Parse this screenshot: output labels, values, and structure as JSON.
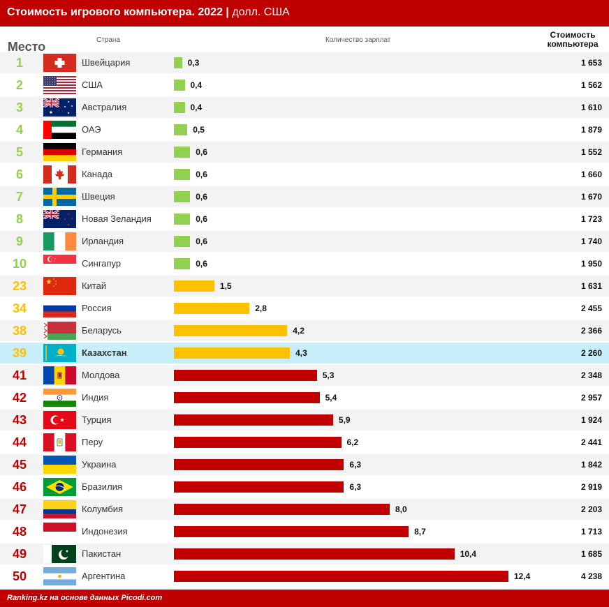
{
  "header": {
    "title": "Стоимость игрового компьютера. 2022",
    "separator": "|",
    "unit": "долл. США"
  },
  "columns": {
    "rank": "Место",
    "country": "Страна",
    "salaries": "Количество зарплат",
    "cost": "Стоимость компьютера"
  },
  "colors": {
    "red": "#c00000",
    "green": "#92d050",
    "yellow": "#ffc000",
    "highlight": "#c8eefa",
    "zebra": "#f3f3f3"
  },
  "chart_data": {
    "type": "bar",
    "orientation": "horizontal",
    "xlim": [
      0,
      12.4
    ],
    "rows": [
      {
        "rank": "1",
        "country": "Швейцария",
        "flag": "flag-switzerland",
        "value": 0.3,
        "value_label": "0,3",
        "cost": "1 653",
        "tier": "green"
      },
      {
        "rank": "2",
        "country": "США",
        "flag": "flag-usa",
        "value": 0.4,
        "value_label": "0,4",
        "cost": "1 562",
        "tier": "green"
      },
      {
        "rank": "3",
        "country": "Австралия",
        "flag": "flag-australia",
        "value": 0.4,
        "value_label": "0,4",
        "cost": "1 610",
        "tier": "green"
      },
      {
        "rank": "4",
        "country": "ОАЭ",
        "flag": "flag-uae",
        "value": 0.5,
        "value_label": "0,5",
        "cost": "1 879",
        "tier": "green"
      },
      {
        "rank": "5",
        "country": "Германия",
        "flag": "flag-germany",
        "value": 0.6,
        "value_label": "0,6",
        "cost": "1 552",
        "tier": "green"
      },
      {
        "rank": "6",
        "country": "Канада",
        "flag": "flag-canada",
        "value": 0.6,
        "value_label": "0,6",
        "cost": "1 660",
        "tier": "green"
      },
      {
        "rank": "7",
        "country": "Швеция",
        "flag": "flag-sweden",
        "value": 0.6,
        "value_label": "0,6",
        "cost": "1 670",
        "tier": "green"
      },
      {
        "rank": "8",
        "country": "Новая Зеландия",
        "flag": "flag-new-zealand",
        "value": 0.6,
        "value_label": "0,6",
        "cost": "1 723",
        "tier": "green"
      },
      {
        "rank": "9",
        "country": "Ирландия",
        "flag": "flag-ireland",
        "value": 0.6,
        "value_label": "0,6",
        "cost": "1 740",
        "tier": "green"
      },
      {
        "rank": "10",
        "country": "Сингапур",
        "flag": "flag-singapore",
        "value": 0.6,
        "value_label": "0,6",
        "cost": "1 950",
        "tier": "green"
      },
      {
        "rank": "23",
        "country": "Китай",
        "flag": "flag-china",
        "value": 1.5,
        "value_label": "1,5",
        "cost": "1 631",
        "tier": "yellow"
      },
      {
        "rank": "34",
        "country": "Россия",
        "flag": "flag-russia",
        "value": 2.8,
        "value_label": "2,8",
        "cost": "2 455",
        "tier": "yellow"
      },
      {
        "rank": "38",
        "country": "Беларусь",
        "flag": "flag-belarus",
        "value": 4.2,
        "value_label": "4,2",
        "cost": "2 366",
        "tier": "yellow"
      },
      {
        "rank": "39",
        "country": "Казахстан",
        "flag": "flag-kazakhstan",
        "value": 4.3,
        "value_label": "4,3",
        "cost": "2 260",
        "tier": "yellow",
        "highlight": true
      },
      {
        "rank": "41",
        "country": "Молдова",
        "flag": "flag-moldova",
        "value": 5.3,
        "value_label": "5,3",
        "cost": "2 348",
        "tier": "red"
      },
      {
        "rank": "42",
        "country": "Индия",
        "flag": "flag-india",
        "value": 5.4,
        "value_label": "5,4",
        "cost": "2 957",
        "tier": "red"
      },
      {
        "rank": "43",
        "country": "Турция",
        "flag": "flag-turkey",
        "value": 5.9,
        "value_label": "5,9",
        "cost": "1 924",
        "tier": "red"
      },
      {
        "rank": "44",
        "country": "Перу",
        "flag": "flag-peru",
        "value": 6.2,
        "value_label": "6,2",
        "cost": "2 441",
        "tier": "red"
      },
      {
        "rank": "45",
        "country": "Украина",
        "flag": "flag-ukraine",
        "value": 6.3,
        "value_label": "6,3",
        "cost": "1 842",
        "tier": "red"
      },
      {
        "rank": "46",
        "country": "Бразилия",
        "flag": "flag-brazil",
        "value": 6.3,
        "value_label": "6,3",
        "cost": "2 919",
        "tier": "red"
      },
      {
        "rank": "47",
        "country": "Колумбия",
        "flag": "flag-colombia",
        "value": 8.0,
        "value_label": "8,0",
        "cost": "2 203",
        "tier": "red"
      },
      {
        "rank": "48",
        "country": "Индонезия",
        "flag": "flag-indonesia",
        "value": 8.7,
        "value_label": "8,7",
        "cost": "1 713",
        "tier": "red"
      },
      {
        "rank": "49",
        "country": "Пакистан",
        "flag": "flag-pakistan",
        "value": 10.4,
        "value_label": "10,4",
        "cost": "1 685",
        "tier": "red"
      },
      {
        "rank": "50",
        "country": "Аргентина",
        "flag": "flag-argentina",
        "value": 12.4,
        "value_label": "12,4",
        "cost": "4 238",
        "tier": "red"
      }
    ]
  },
  "footer": {
    "source": "Ranking.kz на основе данных Picodi.com"
  }
}
